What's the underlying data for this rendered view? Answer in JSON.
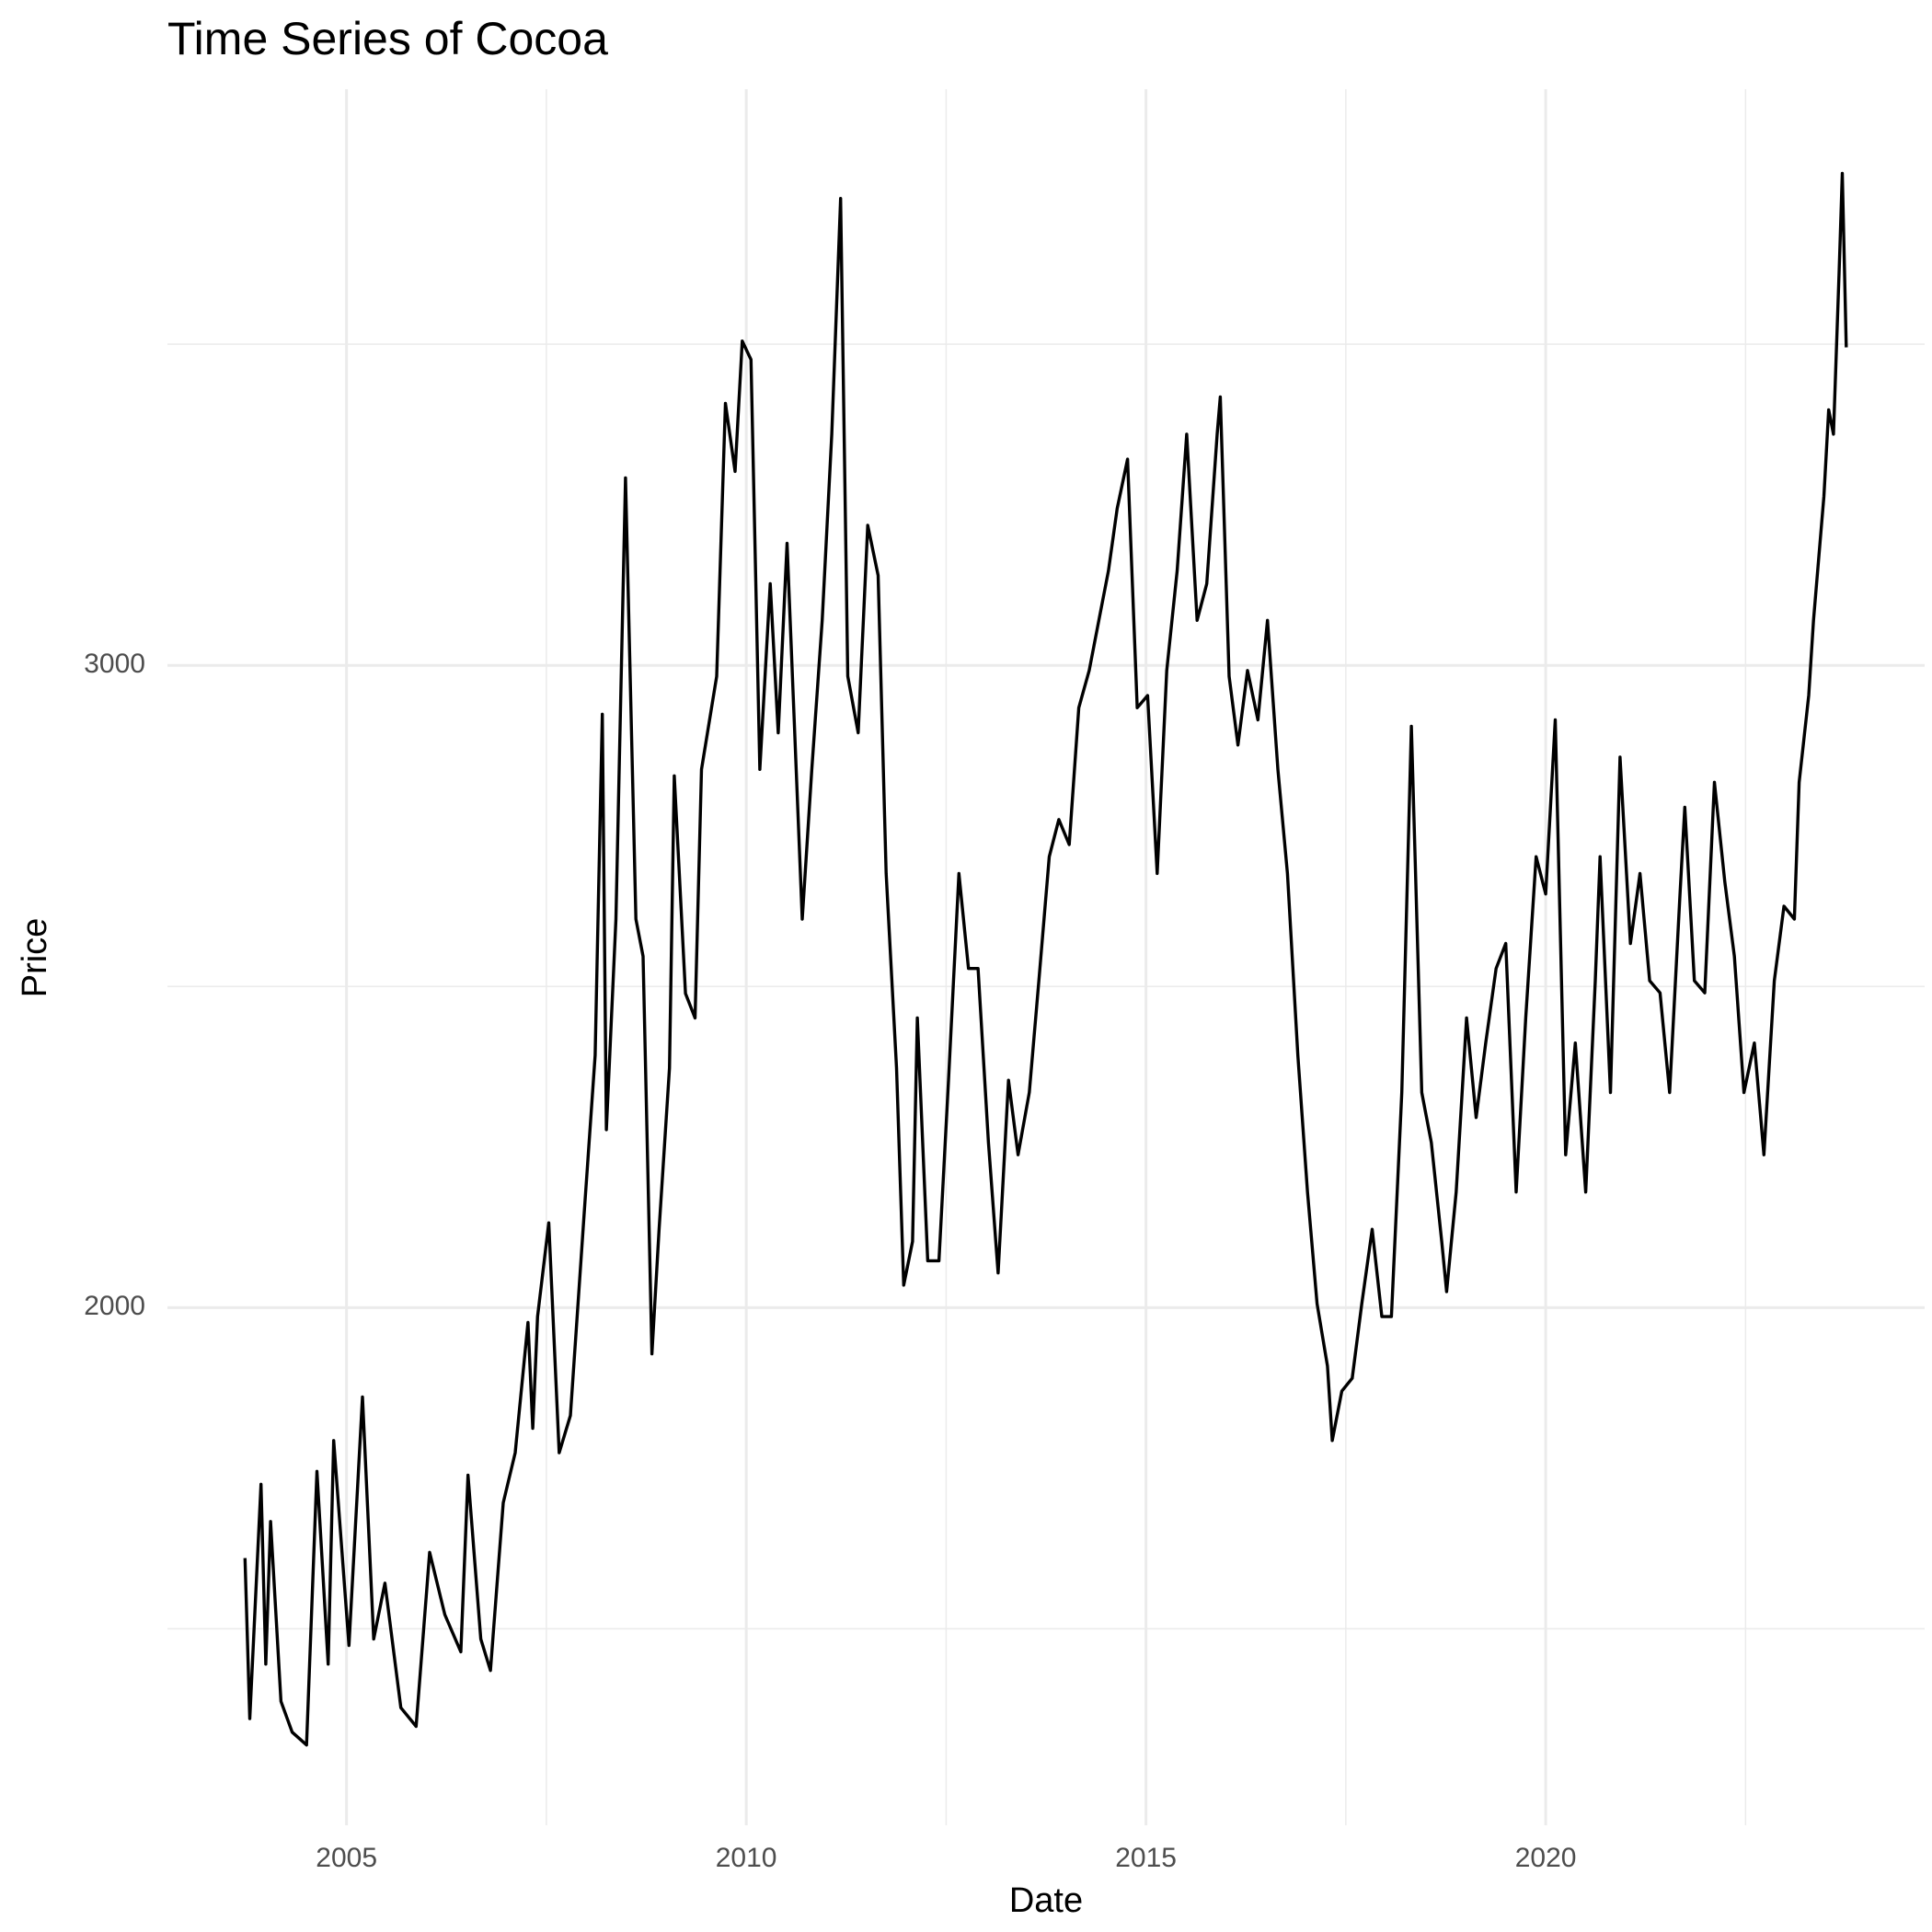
{
  "chart_data": {
    "type": "line",
    "title": "Time Series of Cocoa",
    "x_label": "Date",
    "y_label": "Price",
    "xlim": [
      2002.76,
      2024.74
    ],
    "ylim": [
      1194,
      3897
    ],
    "xticks": [
      2005,
      2010,
      2015,
      2020
    ],
    "yticks": [
      2000,
      3000
    ],
    "xminor": [
      2007.5,
      2012.5,
      2017.5,
      2022.5
    ],
    "yminor": [
      1500,
      2500,
      3500
    ],
    "grid": true,
    "series": [
      {
        "name": "Price",
        "color": "#000000",
        "x": [
          2003.73,
          2003.79,
          2003.93,
          2003.99,
          2004.05,
          2004.18,
          2004.32,
          2004.5,
          2004.63,
          2004.77,
          2004.84,
          2005.03,
          2005.2,
          2005.34,
          2005.48,
          2005.68,
          2005.87,
          2006.04,
          2006.23,
          2006.43,
          2006.52,
          2006.68,
          2006.8,
          2006.96,
          2007.11,
          2007.27,
          2007.33,
          2007.39,
          2007.53,
          2007.66,
          2007.8,
          2007.97,
          2008.11,
          2008.2,
          2008.25,
          2008.37,
          2008.49,
          2008.62,
          2008.71,
          2008.82,
          2008.91,
          2009.04,
          2009.1,
          2009.24,
          2009.36,
          2009.44,
          2009.63,
          2009.74,
          2009.86,
          2009.95,
          2010.06,
          2010.17,
          2010.3,
          2010.4,
          2010.51,
          2010.7,
          2010.82,
          2010.95,
          2011.07,
          2011.18,
          2011.27,
          2011.4,
          2011.52,
          2011.65,
          2011.75,
          2011.88,
          2011.97,
          2012.08,
          2012.14,
          2012.27,
          2012.41,
          2012.53,
          2012.66,
          2012.78,
          2012.9,
          2013.03,
          2013.15,
          2013.28,
          2013.4,
          2013.54,
          2013.66,
          2013.79,
          2013.91,
          2014.04,
          2014.16,
          2014.29,
          2014.41,
          2014.53,
          2014.64,
          2014.77,
          2014.89,
          2015.02,
          2015.14,
          2015.26,
          2015.39,
          2015.51,
          2015.64,
          2015.76,
          2015.89,
          2015.93,
          2016.04,
          2016.15,
          2016.27,
          2016.4,
          2016.52,
          2016.65,
          2016.77,
          2016.9,
          2017.02,
          2017.14,
          2017.27,
          2017.33,
          2017.45,
          2017.58,
          2017.7,
          2017.83,
          2017.95,
          2018.07,
          2018.2,
          2018.32,
          2018.45,
          2018.57,
          2018.7,
          2018.76,
          2018.88,
          2019.01,
          2019.13,
          2019.25,
          2019.38,
          2019.5,
          2019.63,
          2019.75,
          2019.88,
          2020.0,
          2020.12,
          2020.25,
          2020.37,
          2020.5,
          2020.62,
          2020.68,
          2020.81,
          2020.93,
          2021.06,
          2021.18,
          2021.3,
          2021.43,
          2021.55,
          2021.68,
          2021.74,
          2021.86,
          2021.99,
          2022.11,
          2022.24,
          2022.36,
          2022.48,
          2022.61,
          2022.73,
          2022.86,
          2022.98,
          2023.11,
          2023.17,
          2023.29,
          2023.35,
          2023.48,
          2023.54,
          2023.6,
          2023.67,
          2023.71,
          2023.76
        ],
        "values": [
          1610,
          1360,
          1725,
          1445,
          1667,
          1387,
          1339,
          1319,
          1745,
          1445,
          1793,
          1474,
          1861,
          1484,
          1571,
          1377,
          1348,
          1619,
          1522,
          1464,
          1739,
          1484,
          1435,
          1696,
          1774,
          1977,
          1812,
          1986,
          2132,
          1774,
          1832,
          2141,
          2393,
          2924,
          2277,
          2605,
          3292,
          2605,
          2547,
          1928,
          2122,
          2373,
          2828,
          2489,
          2451,
          2838,
          2983,
          3408,
          3302,
          3505,
          3476,
          2838,
          3127,
          2895,
          3190,
          2605,
          2838,
          3070,
          3360,
          3727,
          2983,
          2895,
          3218,
          3140,
          2676,
          2373,
          2035,
          2103,
          2451,
          2073,
          2073,
          2354,
          2676,
          2528,
          2528,
          2257,
          2054,
          2354,
          2238,
          2335,
          2509,
          2702,
          2760,
          2721,
          2934,
          2992,
          3070,
          3147,
          3244,
          3321,
          2934,
          2953,
          2676,
          2992,
          3147,
          3360,
          3070,
          3127,
          3360,
          3418,
          2983,
          2876,
          2992,
          2915,
          3070,
          2838,
          2676,
          2393,
          2180,
          2006,
          1909,
          1793,
          1870,
          1890,
          2006,
          2122,
          1986,
          1986,
          2335,
          2905,
          2335,
          2257,
          2103,
          2025,
          2180,
          2451,
          2296,
          2412,
          2528,
          2567,
          2180,
          2451,
          2702,
          2644,
          2915,
          2238,
          2412,
          2180,
          2509,
          2702,
          2335,
          2857,
          2567,
          2676,
          2509,
          2490,
          2335,
          2644,
          2779,
          2509,
          2490,
          2818,
          2663,
          2547,
          2335,
          2412,
          2238,
          2509,
          2625,
          2605,
          2818,
          2953,
          3070,
          3263,
          3398,
          3360,
          3611,
          3766,
          3495
        ]
      }
    ]
  }
}
